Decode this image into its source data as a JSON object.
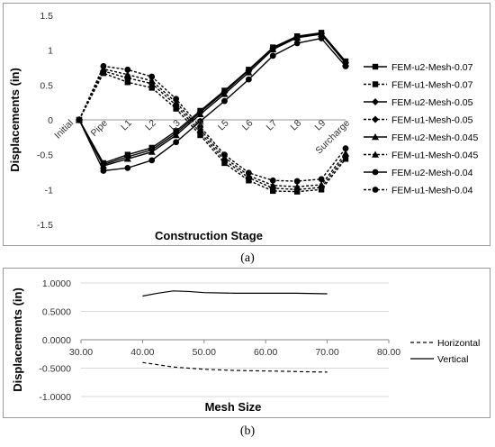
{
  "chart_data": [
    {
      "type": "line",
      "panel": "(a)",
      "xlabel": "Construction Stage",
      "ylabel": "Displacements (in)",
      "categories": [
        "Initial",
        "Pipe",
        "L1",
        "L2",
        "L3",
        "L4",
        "L5",
        "L6",
        "L7",
        "L8",
        "L9",
        "Surcharge"
      ],
      "ylim": [
        -1.5,
        1.5
      ],
      "yticks": [
        "1.5",
        "1",
        "0.5",
        "0",
        "-0.5",
        "-1",
        "-1.5"
      ],
      "legend_position": "right",
      "series": [
        {
          "name": "FEM-u2-Mesh-0.07",
          "marker": "square",
          "dashed": false,
          "values": [
            0,
            -0.62,
            -0.5,
            -0.4,
            -0.16,
            0.13,
            0.42,
            0.72,
            1.04,
            1.2,
            1.25,
            0.84
          ]
        },
        {
          "name": "FEM-u1-Mesh-0.07",
          "marker": "square",
          "dashed": true,
          "values": [
            0,
            0.67,
            0.54,
            0.46,
            0.16,
            -0.22,
            -0.62,
            -0.87,
            -1.02,
            -1.03,
            -1.0,
            -0.56
          ]
        },
        {
          "name": "FEM-u2-Mesh-0.05",
          "marker": "diamond",
          "dashed": false,
          "values": [
            0,
            -0.64,
            -0.53,
            -0.43,
            -0.19,
            0.11,
            0.4,
            0.71,
            1.03,
            1.19,
            1.24,
            0.82
          ]
        },
        {
          "name": "FEM-u1-Mesh-0.05",
          "marker": "diamond",
          "dashed": true,
          "values": [
            0,
            0.7,
            0.6,
            0.52,
            0.21,
            -0.18,
            -0.58,
            -0.83,
            -0.98,
            -1.0,
            -0.97,
            -0.52
          ]
        },
        {
          "name": "FEM-u2-Mesh-0.045",
          "marker": "triangle",
          "dashed": false,
          "values": [
            0,
            -0.66,
            -0.56,
            -0.46,
            -0.22,
            0.08,
            0.37,
            0.68,
            1.01,
            1.18,
            1.23,
            0.81
          ]
        },
        {
          "name": "FEM-u1-Mesh-0.045",
          "marker": "triangle",
          "dashed": true,
          "values": [
            0,
            0.73,
            0.65,
            0.56,
            0.25,
            -0.14,
            -0.54,
            -0.8,
            -0.94,
            -0.96,
            -0.93,
            -0.48
          ]
        },
        {
          "name": "FEM-u2-Mesh-0.04",
          "marker": "circle",
          "dashed": false,
          "values": [
            0,
            -0.73,
            -0.69,
            -0.58,
            -0.32,
            -0.02,
            0.27,
            0.58,
            0.92,
            1.1,
            1.17,
            0.77
          ]
        },
        {
          "name": "FEM-u1-Mesh-0.04",
          "marker": "circle",
          "dashed": true,
          "values": [
            0,
            0.77,
            0.72,
            0.62,
            0.3,
            -0.1,
            -0.5,
            -0.76,
            -0.87,
            -0.88,
            -0.85,
            -0.41
          ]
        }
      ]
    },
    {
      "type": "line",
      "panel": "(b)",
      "xlabel": "Mesh Size",
      "ylabel": "Displacements (in)",
      "xlim": [
        30,
        80
      ],
      "ylim": [
        -1,
        1
      ],
      "xticks": [
        "30.00",
        "40.00",
        "50.00",
        "60.00",
        "70.00",
        "80.00"
      ],
      "yticks": [
        "1.0000",
        "0.5000",
        "0.0000",
        "-0.5000",
        "-1.0000"
      ],
      "legend_position": "right",
      "series": [
        {
          "name": "Horizontal",
          "dashed": true,
          "x": [
            40,
            45,
            50,
            55,
            60,
            65,
            70
          ],
          "y": [
            -0.4,
            -0.48,
            -0.52,
            -0.54,
            -0.55,
            -0.56,
            -0.57
          ]
        },
        {
          "name": "Vertical",
          "dashed": false,
          "x": [
            40,
            42.5,
            45,
            47.5,
            50,
            55,
            60,
            65,
            70
          ],
          "y": [
            0.77,
            0.82,
            0.86,
            0.85,
            0.83,
            0.82,
            0.82,
            0.82,
            0.81
          ]
        }
      ]
    }
  ],
  "captions": {
    "a": "(a)",
    "b": "(b)"
  }
}
